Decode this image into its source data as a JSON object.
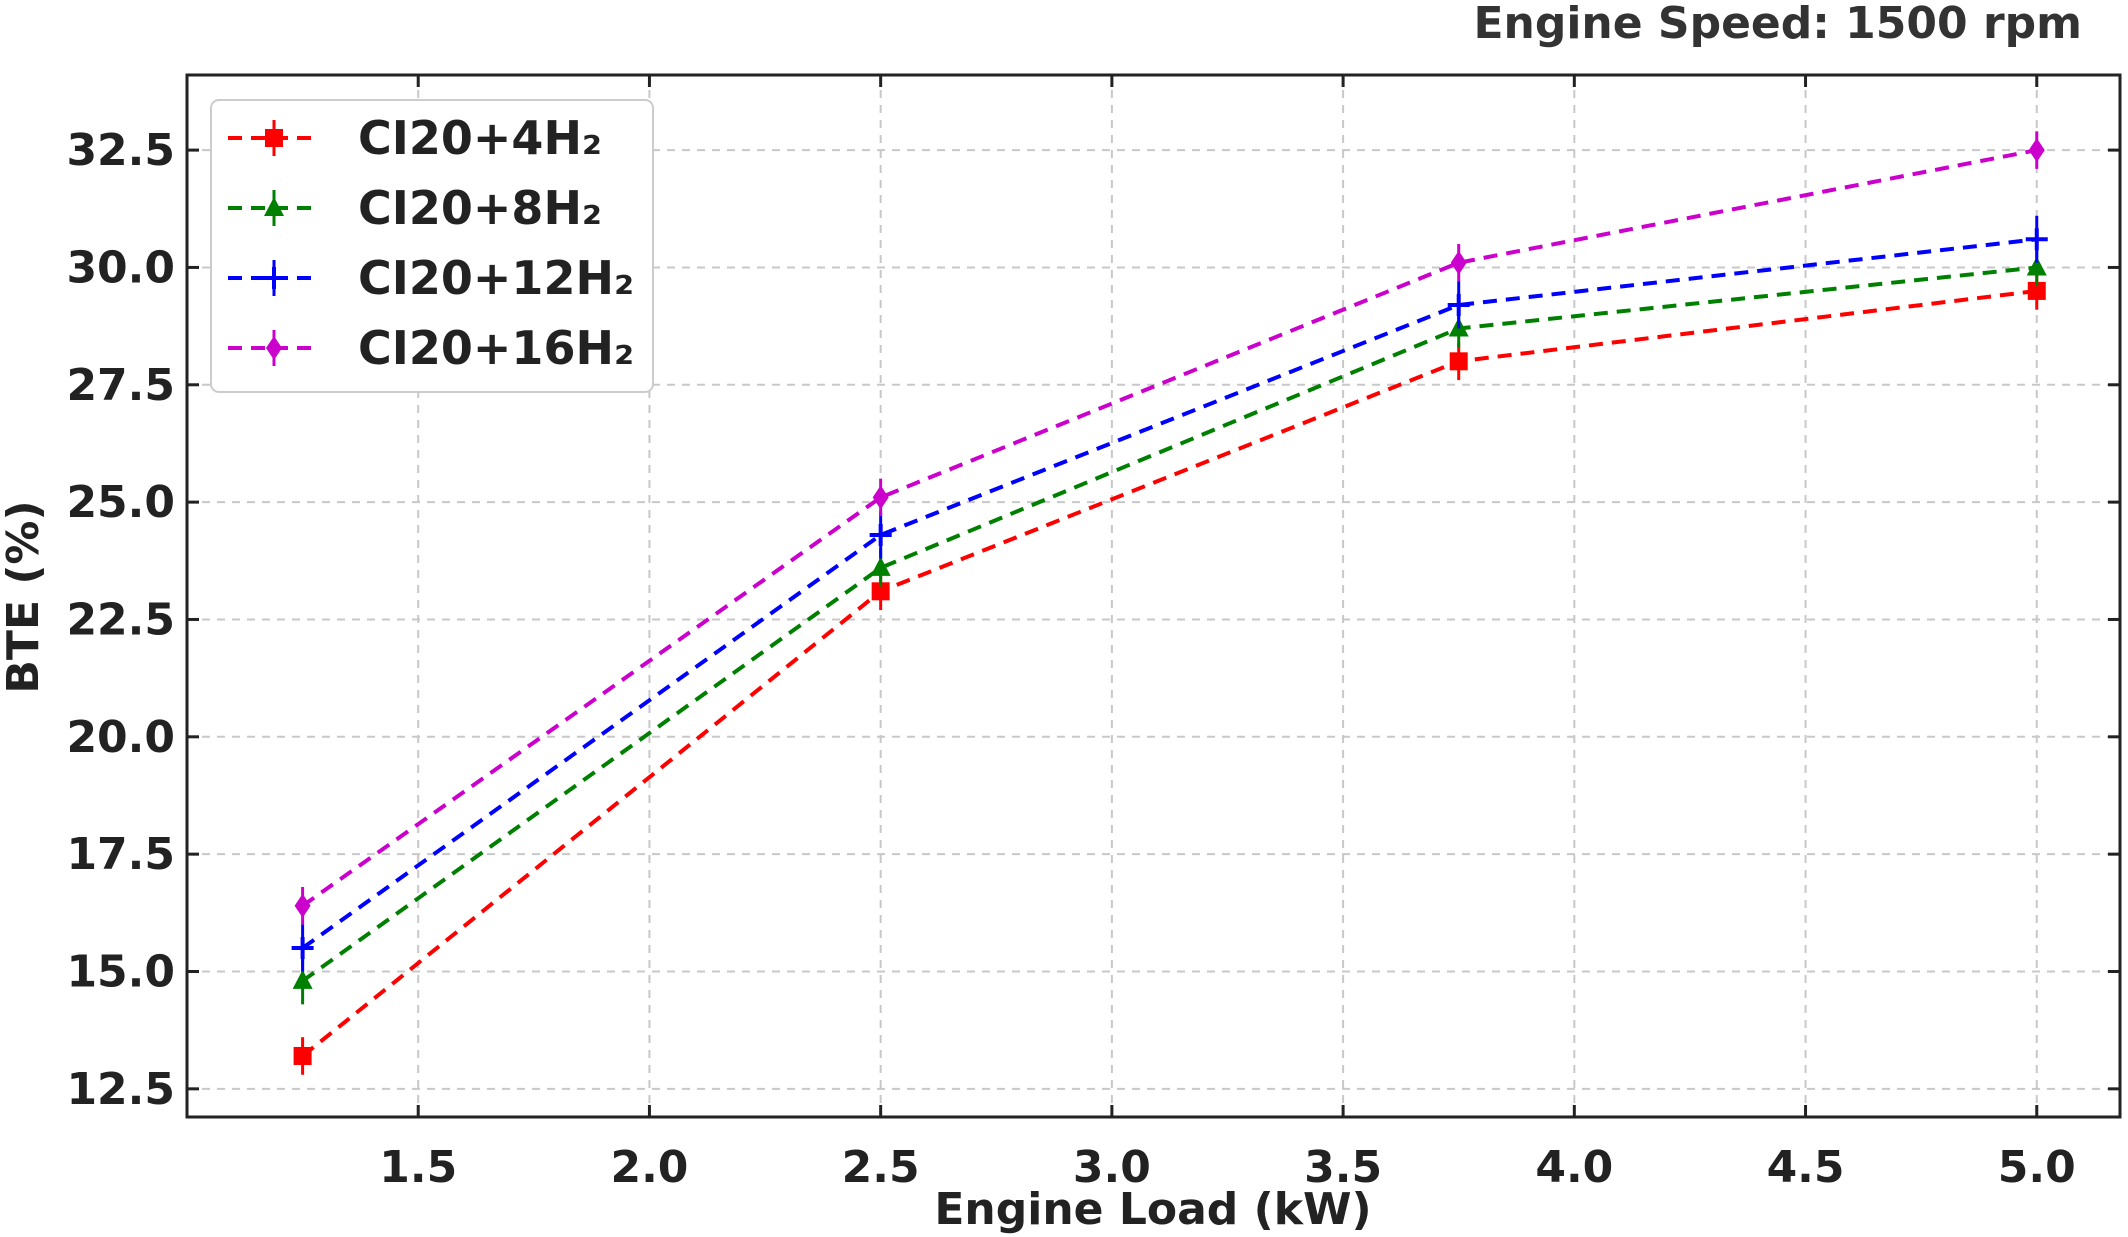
{
  "chart_data": {
    "type": "line",
    "annotation": "Engine Speed: 1500 rpm",
    "xlabel": "Engine Load (kW)",
    "ylabel": "BTE (%)",
    "xlim": [
      1.0,
      5.18
    ],
    "ylim": [
      11.9,
      34.1
    ],
    "xticks": [
      "1.5",
      "2.0",
      "2.5",
      "3.0",
      "3.5",
      "4.0",
      "4.5",
      "5.0"
    ],
    "yticks": [
      "12.5",
      "15.0",
      "17.5",
      "20.0",
      "22.5",
      "25.0",
      "27.5",
      "30.0",
      "32.5"
    ],
    "grid": true,
    "legend_position": "top-left",
    "x": [
      1.25,
      2.5,
      3.75,
      5.0
    ],
    "series": [
      {
        "name": "CI20+4H₂",
        "color": "#ff0000",
        "marker": "square",
        "values": [
          13.2,
          23.1,
          28.0,
          29.5
        ],
        "errors": [
          0.4,
          0.4,
          0.4,
          0.4
        ]
      },
      {
        "name": "CI20+8H₂",
        "color": "#008000",
        "marker": "triangle",
        "values": [
          14.8,
          23.6,
          28.7,
          30.0
        ],
        "errors": [
          0.5,
          0.4,
          0.4,
          0.4
        ]
      },
      {
        "name": "CI20+12H₂",
        "color": "#0000ff",
        "marker": "plus",
        "values": [
          15.5,
          24.3,
          29.2,
          30.6
        ],
        "errors": [
          0.5,
          0.5,
          0.5,
          0.5
        ]
      },
      {
        "name": "CI20+16H₂",
        "color": "#cc00cc",
        "marker": "diamond",
        "values": [
          16.4,
          25.1,
          30.1,
          32.5
        ],
        "errors": [
          0.4,
          0.4,
          0.4,
          0.4
        ]
      }
    ]
  }
}
